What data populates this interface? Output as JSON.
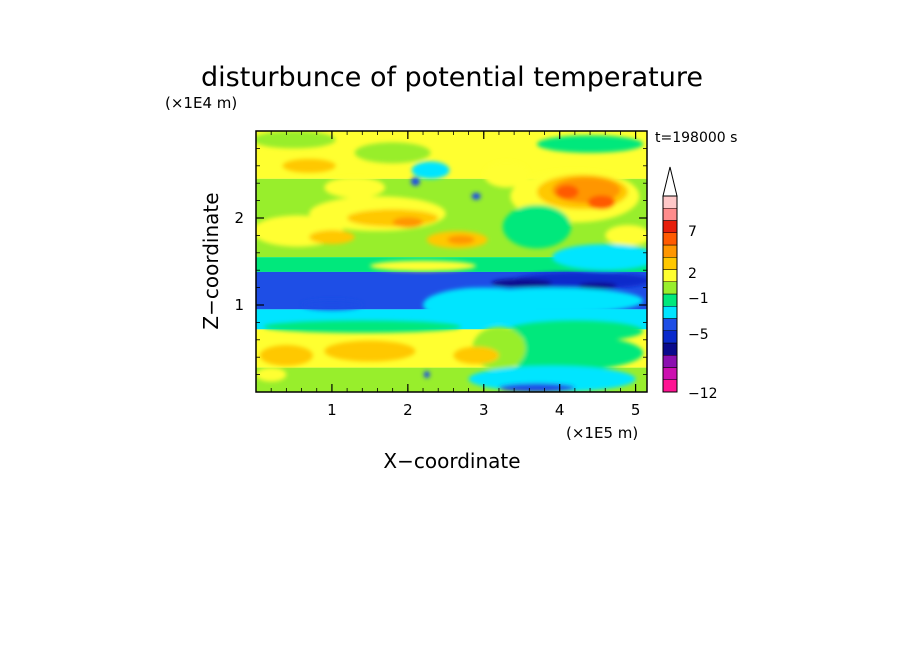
{
  "chart_data": {
    "type": "heatmap",
    "title": "disturbunce of potential temperature",
    "xlabel": "X−coordinate",
    "ylabel": "Z−coordinate",
    "x_unit": "(×1E5 m)",
    "y_unit": "(×1E4 m)",
    "time_label": "t=198000 s",
    "xlim": [
      0,
      5.15
    ],
    "ylim": [
      0,
      3.0
    ],
    "x_ticks": [
      "1",
      "2",
      "3",
      "4",
      "5"
    ],
    "x_tick_values": [
      1,
      2,
      3,
      4,
      5
    ],
    "y_ticks": [
      "1",
      "2"
    ],
    "y_tick_values": [
      1,
      2
    ],
    "colorbar": {
      "colors": [
        "#ff1493",
        "#cc10b0",
        "#8b10b0",
        "#0a0a8c",
        "#0a2acc",
        "#1e4ee6",
        "#00e5ff",
        "#00e87c",
        "#98ee2c",
        "#ffff30",
        "#ffc800",
        "#ff9600",
        "#ff5a00",
        "#e61e0a",
        "#ff8c8c",
        "#ffc8c8"
      ],
      "tick_labels": [
        "7",
        "2",
        "−1",
        "−5",
        "−12"
      ],
      "has_arrow_top": true
    },
    "bands": [
      {
        "z_top": 3.0,
        "z_bottom": 2.45,
        "color": "#ffff30"
      },
      {
        "z_top": 2.45,
        "z_bottom": 1.55,
        "color": "#98ee2c"
      },
      {
        "z_top": 1.55,
        "z_bottom": 1.38,
        "color": "#00e87c"
      },
      {
        "z_top": 1.38,
        "z_bottom": 0.95,
        "color": "#1e4ee6"
      },
      {
        "z_top": 0.95,
        "z_bottom": 0.72,
        "color": "#00e5ff"
      },
      {
        "z_top": 0.72,
        "z_bottom": 0.28,
        "color": "#ffff30"
      },
      {
        "z_top": 0.28,
        "z_bottom": 0.0,
        "color": "#98ee2c"
      }
    ],
    "blobs": [
      {
        "x": 0.5,
        "z": 2.9,
        "rx": 0.55,
        "rz": 0.1,
        "color": "#98ee2c"
      },
      {
        "x": 1.8,
        "z": 2.75,
        "rx": 0.5,
        "rz": 0.12,
        "color": "#98ee2c"
      },
      {
        "x": 4.4,
        "z": 2.85,
        "rx": 0.7,
        "rz": 0.1,
        "color": "#00e87c"
      },
      {
        "x": 0.7,
        "z": 2.6,
        "rx": 0.35,
        "rz": 0.08,
        "color": "#ffc800"
      },
      {
        "x": 2.3,
        "z": 2.55,
        "rx": 0.25,
        "rz": 0.1,
        "color": "#00e5ff"
      },
      {
        "x": 2.1,
        "z": 2.42,
        "rx": 0.06,
        "rz": 0.05,
        "color": "#1e4ee6"
      },
      {
        "x": 2.9,
        "z": 2.25,
        "rx": 0.06,
        "rz": 0.04,
        "color": "#1e4ee6"
      },
      {
        "x": 1.3,
        "z": 2.35,
        "rx": 0.4,
        "rz": 0.12,
        "color": "#ffff30"
      },
      {
        "x": 3.3,
        "z": 2.5,
        "rx": 0.3,
        "rz": 0.15,
        "color": "#ffff30"
      },
      {
        "x": 4.2,
        "z": 2.25,
        "rx": 0.85,
        "rz": 0.3,
        "color": "#ffff30"
      },
      {
        "x": 4.3,
        "z": 2.3,
        "rx": 0.6,
        "rz": 0.2,
        "color": "#ffc800"
      },
      {
        "x": 4.35,
        "z": 2.32,
        "rx": 0.45,
        "rz": 0.15,
        "color": "#ff9600"
      },
      {
        "x": 4.1,
        "z": 2.3,
        "rx": 0.15,
        "rz": 0.08,
        "color": "#ff5a00"
      },
      {
        "x": 4.55,
        "z": 2.18,
        "rx": 0.18,
        "rz": 0.08,
        "color": "#ff5a00"
      },
      {
        "x": 3.7,
        "z": 1.9,
        "rx": 0.45,
        "rz": 0.25,
        "color": "#00e87c"
      },
      {
        "x": 1.6,
        "z": 2.05,
        "rx": 0.9,
        "rz": 0.2,
        "color": "#ffff30"
      },
      {
        "x": 1.8,
        "z": 2.0,
        "rx": 0.6,
        "rz": 0.1,
        "color": "#ffc800"
      },
      {
        "x": 2.0,
        "z": 1.95,
        "rx": 0.2,
        "rz": 0.06,
        "color": "#ff9600"
      },
      {
        "x": 0.55,
        "z": 1.85,
        "rx": 0.6,
        "rz": 0.18,
        "color": "#ffff30"
      },
      {
        "x": 1.0,
        "z": 1.78,
        "rx": 0.3,
        "rz": 0.08,
        "color": "#ffc800"
      },
      {
        "x": 2.65,
        "z": 1.75,
        "rx": 0.4,
        "rz": 0.1,
        "color": "#ffc800"
      },
      {
        "x": 2.7,
        "z": 1.75,
        "rx": 0.18,
        "rz": 0.05,
        "color": "#ff9600"
      },
      {
        "x": 4.9,
        "z": 1.8,
        "rx": 0.3,
        "rz": 0.12,
        "color": "#ffff30"
      },
      {
        "x": 4.6,
        "z": 1.55,
        "rx": 0.7,
        "rz": 0.15,
        "color": "#00e5ff"
      },
      {
        "x": 2.2,
        "z": 1.45,
        "rx": 0.7,
        "rz": 0.06,
        "color": "#ffff30"
      },
      {
        "x": 4.3,
        "z": 1.28,
        "rx": 0.9,
        "rz": 0.1,
        "color": "#0a2acc"
      },
      {
        "x": 3.5,
        "z": 1.25,
        "rx": 0.4,
        "rz": 0.05,
        "color": "#0a0a8c"
      },
      {
        "x": 4.5,
        "z": 1.22,
        "rx": 0.25,
        "rz": 0.04,
        "color": "#0a0a8c"
      },
      {
        "x": 3.0,
        "z": 1.0,
        "rx": 0.8,
        "rz": 0.2,
        "color": "#00e5ff"
      },
      {
        "x": 3.9,
        "z": 1.05,
        "rx": 1.2,
        "rz": 0.15,
        "color": "#00e5ff"
      },
      {
        "x": 1.0,
        "z": 1.0,
        "rx": 0.4,
        "rz": 0.06,
        "color": "#1e4ee6"
      },
      {
        "x": 1.4,
        "z": 0.75,
        "rx": 1.3,
        "rz": 0.07,
        "color": "#00e87c"
      },
      {
        "x": 4.2,
        "z": 0.7,
        "rx": 0.9,
        "rz": 0.12,
        "color": "#00e87c"
      },
      {
        "x": 4.1,
        "z": 0.45,
        "rx": 1.0,
        "rz": 0.2,
        "color": "#00e87c"
      },
      {
        "x": 3.2,
        "z": 0.5,
        "rx": 0.35,
        "rz": 0.25,
        "color": "#98ee2c"
      },
      {
        "x": 0.4,
        "z": 0.42,
        "rx": 0.35,
        "rz": 0.12,
        "color": "#ffc800"
      },
      {
        "x": 1.5,
        "z": 0.47,
        "rx": 0.6,
        "rz": 0.12,
        "color": "#ffc800"
      },
      {
        "x": 2.9,
        "z": 0.42,
        "rx": 0.3,
        "rz": 0.1,
        "color": "#ffc800"
      },
      {
        "x": 3.9,
        "z": 0.15,
        "rx": 1.1,
        "rz": 0.15,
        "color": "#00e5ff"
      },
      {
        "x": 3.7,
        "z": 0.05,
        "rx": 0.5,
        "rz": 0.05,
        "color": "#1e4ee6"
      },
      {
        "x": 2.25,
        "z": 0.2,
        "rx": 0.04,
        "rz": 0.04,
        "color": "#1e4ee6"
      },
      {
        "x": 0.2,
        "z": 0.2,
        "rx": 0.2,
        "rz": 0.08,
        "color": "#ffff30"
      }
    ]
  }
}
